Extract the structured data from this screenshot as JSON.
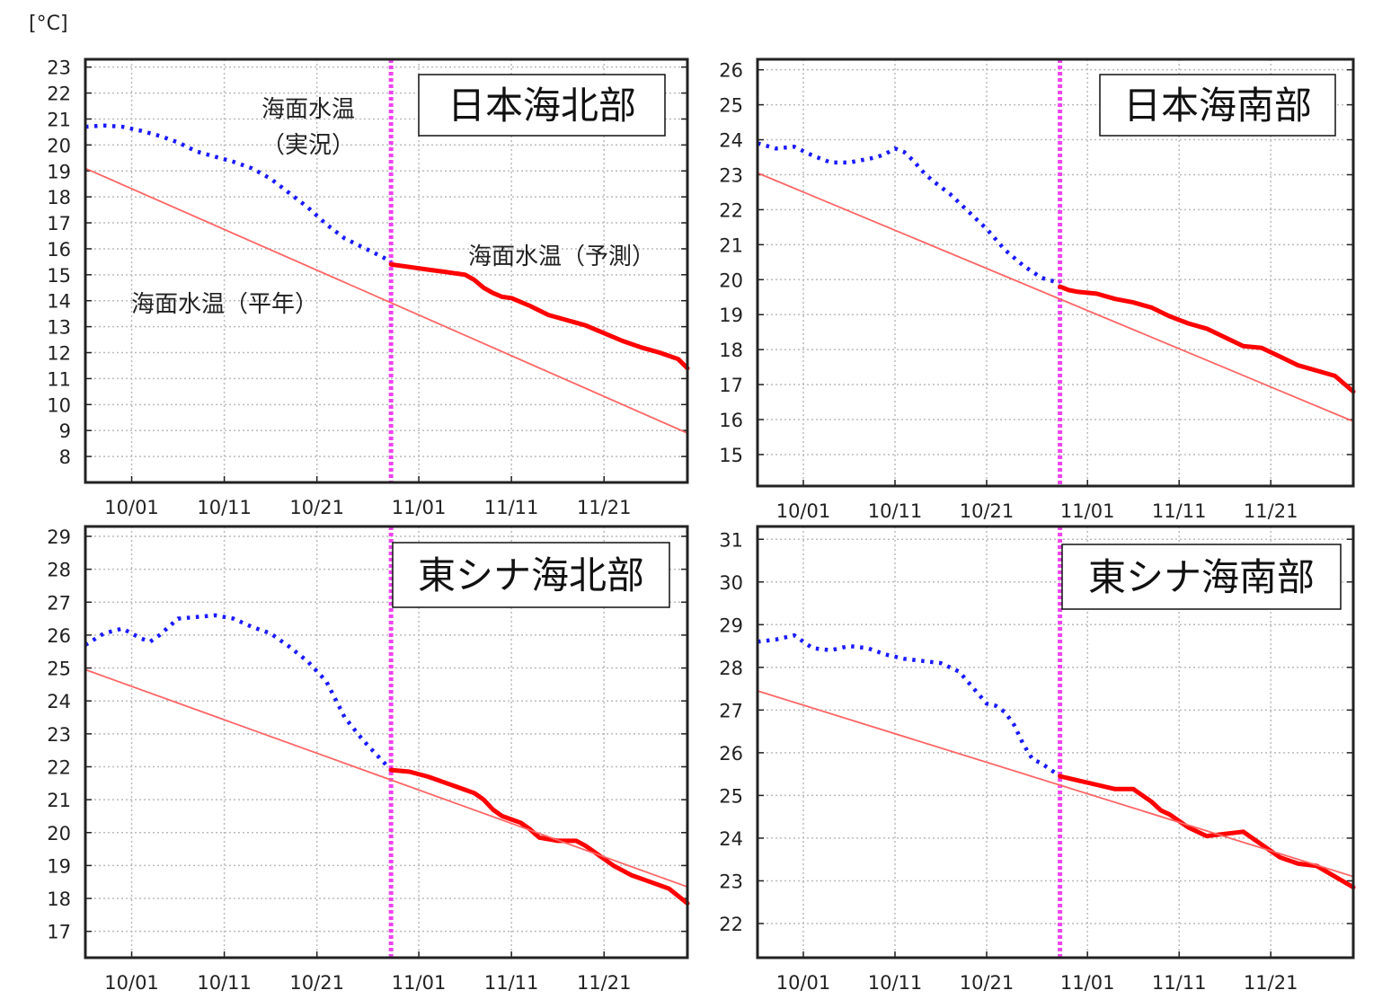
{
  "unit_label": "[°C]",
  "annotations": {
    "observed_line1": "海面水温",
    "observed_line2": "（実況）",
    "forecast": "海面水温（予測）",
    "normal": "海面水温（平年）"
  },
  "colors": {
    "observed": "#1a1aff",
    "forecast": "#ff0000",
    "normal": "#ff6666",
    "divider": "#ee44ee",
    "grid": "#bbbbbb",
    "frame": "#222222"
  },
  "chart_data": [
    {
      "type": "line",
      "title": "日本海北部",
      "x_ticks": [
        "10/01",
        "10/11",
        "10/21",
        "11/01",
        "11/11",
        "11/21"
      ],
      "x_tick_days": [
        4,
        14,
        24,
        35,
        45,
        55
      ],
      "xlim": [
        -1,
        64
      ],
      "divider_day": 32,
      "ylim": [
        7,
        23.3
      ],
      "y_ticks": [
        8,
        9,
        10,
        11,
        12,
        13,
        14,
        15,
        16,
        17,
        18,
        19,
        20,
        21,
        22,
        23
      ],
      "series": [
        {
          "key": "observed",
          "x": [
            -1,
            1,
            3,
            5,
            7,
            9,
            11,
            13,
            15,
            17,
            19,
            21,
            23,
            25,
            27,
            29,
            31,
            32
          ],
          "y": [
            20.7,
            20.75,
            20.7,
            20.55,
            20.35,
            20.1,
            19.75,
            19.55,
            19.35,
            19.1,
            18.7,
            18.15,
            17.6,
            16.95,
            16.4,
            16.05,
            15.7,
            15.5
          ]
        },
        {
          "key": "forecast",
          "x": [
            32,
            34,
            36,
            38,
            40,
            41,
            42,
            43,
            44,
            45,
            47,
            49,
            51,
            53,
            55,
            57,
            59,
            61,
            63,
            64
          ],
          "y": [
            15.4,
            15.3,
            15.2,
            15.1,
            15.0,
            14.8,
            14.5,
            14.3,
            14.15,
            14.1,
            13.8,
            13.45,
            13.25,
            13.05,
            12.75,
            12.45,
            12.2,
            12.0,
            11.75,
            11.4
          ]
        },
        {
          "key": "normal",
          "x": [
            -1,
            64
          ],
          "y": [
            19.1,
            8.9
          ]
        }
      ]
    },
    {
      "type": "line",
      "title": "日本海南部",
      "x_ticks": [
        "10/01",
        "10/11",
        "10/21",
        "11/01",
        "11/11",
        "11/21"
      ],
      "x_tick_days": [
        4,
        14,
        24,
        35,
        45,
        55
      ],
      "xlim": [
        -1,
        64
      ],
      "divider_day": 32,
      "ylim": [
        14.1,
        26.3
      ],
      "y_ticks": [
        15,
        16,
        17,
        18,
        19,
        20,
        21,
        22,
        23,
        24,
        25,
        26
      ],
      "series": [
        {
          "key": "observed",
          "x": [
            -1,
            1,
            3,
            5,
            7,
            9,
            11,
            12,
            13,
            14,
            15,
            16,
            17,
            18,
            20,
            22,
            24,
            26,
            28,
            30,
            32
          ],
          "y": [
            23.9,
            23.75,
            23.8,
            23.55,
            23.35,
            23.35,
            23.45,
            23.5,
            23.6,
            23.75,
            23.65,
            23.4,
            23.1,
            22.85,
            22.45,
            21.95,
            21.45,
            20.85,
            20.4,
            20.05,
            19.9
          ]
        },
        {
          "key": "forecast",
          "x": [
            32,
            33,
            34,
            36,
            38,
            40,
            42,
            44,
            46,
            48,
            50,
            52,
            54,
            56,
            58,
            60,
            62,
            64
          ],
          "y": [
            19.8,
            19.7,
            19.65,
            19.6,
            19.45,
            19.35,
            19.2,
            18.95,
            18.75,
            18.6,
            18.35,
            18.1,
            18.05,
            17.8,
            17.55,
            17.4,
            17.25,
            16.8
          ]
        },
        {
          "key": "normal",
          "x": [
            -1,
            64
          ],
          "y": [
            23.05,
            15.95
          ]
        }
      ]
    },
    {
      "type": "line",
      "title": "東シナ海北部",
      "x_ticks": [
        "10/01",
        "10/11",
        "10/21",
        "11/01",
        "11/11",
        "11/21"
      ],
      "x_tick_days": [
        4,
        14,
        24,
        35,
        45,
        55
      ],
      "xlim": [
        -1,
        64
      ],
      "divider_day": 32,
      "ylim": [
        16.2,
        29.3
      ],
      "y_ticks": [
        17,
        18,
        19,
        20,
        21,
        22,
        23,
        24,
        25,
        26,
        27,
        28,
        29
      ],
      "series": [
        {
          "key": "observed",
          "x": [
            -1,
            1,
            3,
            5,
            6,
            7,
            9,
            11,
            13,
            15,
            17,
            19,
            21,
            23,
            25,
            27,
            29,
            31,
            32
          ],
          "y": [
            25.7,
            26.05,
            26.2,
            25.9,
            25.8,
            26.0,
            26.5,
            26.55,
            26.6,
            26.5,
            26.25,
            26.05,
            25.65,
            25.2,
            24.6,
            23.5,
            22.8,
            22.2,
            21.9
          ]
        },
        {
          "key": "forecast",
          "x": [
            32,
            34,
            36,
            38,
            40,
            41,
            42,
            43,
            44,
            45,
            46,
            47,
            48,
            50,
            52,
            53,
            54,
            56,
            58,
            60,
            62,
            64
          ],
          "y": [
            21.9,
            21.85,
            21.7,
            21.5,
            21.3,
            21.2,
            21.0,
            20.7,
            20.5,
            20.4,
            20.3,
            20.1,
            19.85,
            19.75,
            19.75,
            19.6,
            19.4,
            19.0,
            18.7,
            18.5,
            18.3,
            17.85
          ]
        },
        {
          "key": "normal",
          "x": [
            -1,
            64
          ],
          "y": [
            24.95,
            18.35
          ]
        }
      ]
    },
    {
      "type": "line",
      "title": "東シナ海南部",
      "x_ticks": [
        "10/01",
        "10/11",
        "10/21",
        "11/01",
        "11/11",
        "11/21"
      ],
      "x_tick_days": [
        4,
        14,
        24,
        35,
        45,
        55
      ],
      "xlim": [
        -1,
        64
      ],
      "divider_day": 32,
      "ylim": [
        21.2,
        31.3
      ],
      "y_ticks": [
        22,
        23,
        24,
        25,
        26,
        27,
        28,
        29,
        30,
        31
      ],
      "series": [
        {
          "key": "observed",
          "x": [
            -1,
            1,
            3,
            5,
            7,
            9,
            11,
            13,
            15,
            17,
            19,
            21,
            23,
            24,
            25,
            26,
            27,
            28,
            29,
            30,
            31,
            32
          ],
          "y": [
            28.6,
            28.65,
            28.75,
            28.45,
            28.4,
            28.5,
            28.45,
            28.3,
            28.2,
            28.15,
            28.1,
            27.9,
            27.4,
            27.15,
            27.1,
            26.95,
            26.65,
            26.2,
            25.85,
            25.75,
            25.6,
            25.45
          ]
        },
        {
          "key": "forecast",
          "x": [
            32,
            34,
            36,
            38,
            40,
            42,
            43,
            44,
            46,
            48,
            50,
            52,
            54,
            56,
            58,
            60,
            62,
            64
          ],
          "y": [
            25.45,
            25.35,
            25.25,
            25.15,
            25.15,
            24.85,
            24.65,
            24.55,
            24.25,
            24.05,
            24.1,
            24.15,
            23.85,
            23.55,
            23.4,
            23.35,
            23.1,
            22.85
          ]
        },
        {
          "key": "normal",
          "x": [
            -1,
            64
          ],
          "y": [
            27.45,
            23.1
          ]
        }
      ]
    }
  ]
}
